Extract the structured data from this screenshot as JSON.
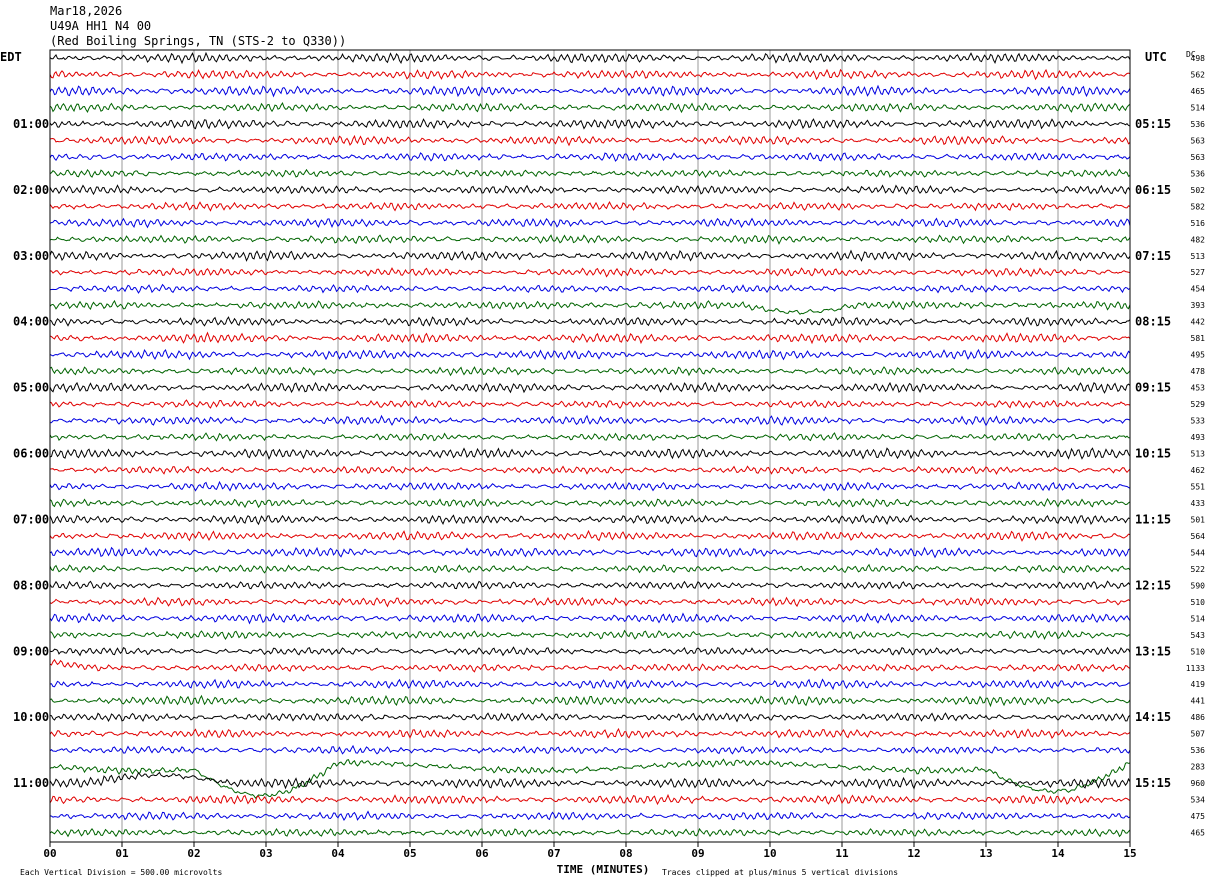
{
  "header": {
    "date": "Mar18,2026",
    "station": "U49A HH1 N4 00",
    "location": "(Red Boiling Springs, TN (STS-2 to Q330))"
  },
  "chart_data": {
    "type": "line",
    "left_tz": "EDT",
    "right_tz": "UTC",
    "dc_label": "DC",
    "xlabel": "TIME (MINUTES)",
    "x_ticks": [
      "00",
      "01",
      "02",
      "03",
      "04",
      "05",
      "06",
      "07",
      "08",
      "09",
      "10",
      "11",
      "12",
      "13",
      "14",
      "15"
    ],
    "xlim": [
      0,
      15
    ],
    "left_hour_labels": [
      "01:00",
      "02:00",
      "03:00",
      "04:00",
      "05:00",
      "06:00",
      "07:00",
      "08:00",
      "09:00",
      "10:00",
      "11:00"
    ],
    "right_hour_labels": [
      "05:15",
      "06:15",
      "07:15",
      "08:15",
      "09:15",
      "10:15",
      "11:15",
      "12:15",
      "13:15",
      "14:15",
      "15:15"
    ],
    "trace_colors": [
      "#000000",
      "#e00000",
      "#0000e0",
      "#006400"
    ],
    "dc_offsets": [
      498,
      562,
      465,
      514,
      536,
      563,
      563,
      536,
      502,
      582,
      516,
      482,
      513,
      527,
      454,
      393,
      442,
      581,
      495,
      478,
      453,
      529,
      533,
      493,
      513,
      462,
      551,
      433,
      501,
      564,
      544,
      522,
      590,
      510,
      514,
      543,
      510,
      1133,
      419,
      441,
      486,
      507,
      536,
      283,
      960,
      534,
      475,
      465
    ],
    "scale_note": "Each Vertical Division =  500.00 microvolts",
    "clip_note": "Traces clipped at plus/minus 5 vertical divisions"
  }
}
